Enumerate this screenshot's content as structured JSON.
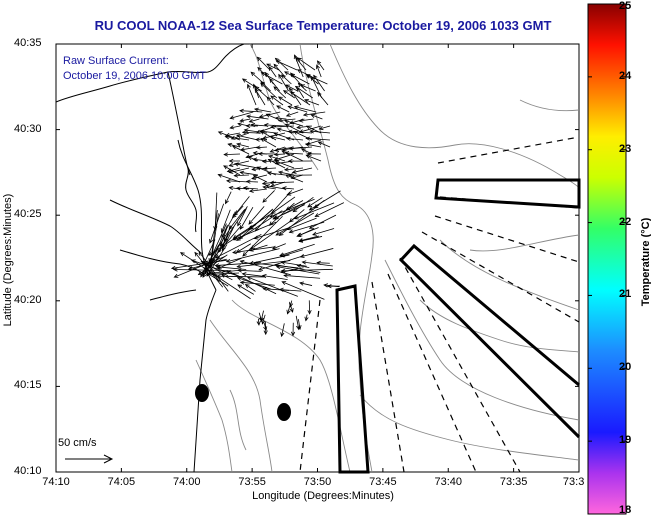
{
  "title": "RU COOL  NOAA-12  Sea Surface Temperature:  October 19, 2006 1033 GMT",
  "annotation": {
    "line1": "Raw Surface Current:",
    "line2": "October 19, 2006 10:00 GMT"
  },
  "map": {
    "x_label": "Longitude (Degrees:Minutes)",
    "y_label": "Latitude (Degrees:Minutes)",
    "x_ticks": [
      "74:10",
      "74:05",
      "74:00",
      "73:55",
      "73:50",
      "73:45",
      "73:40",
      "73:35",
      "73:3"
    ],
    "y_ticks": [
      "40:35",
      "40:30",
      "40:25",
      "40:20",
      "40:15",
      "40:10"
    ],
    "scale_label": "50 cm/s",
    "colors": {
      "annotation_text": "#1a1aa0",
      "coastline": "#000000",
      "bathymetry": "#888888",
      "vectors": "#000000"
    }
  },
  "colorbar": {
    "label": "Temperature (°C)",
    "ticks": [
      "25",
      "24",
      "23",
      "22",
      "21",
      "20",
      "19",
      "18"
    ],
    "colormap": "jet (magenta at 18 °C → red at 25 °C)"
  }
}
